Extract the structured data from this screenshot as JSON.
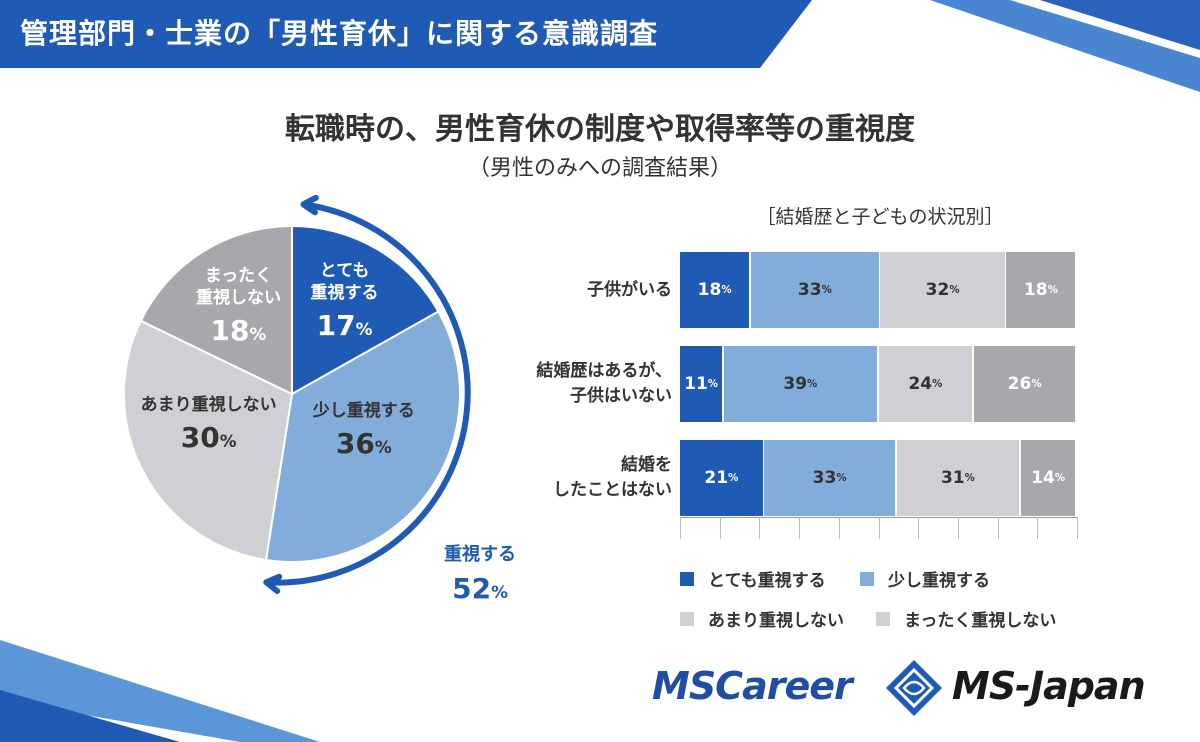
{
  "header": {
    "title": "管理部門・士業の「男性育休」に関する意識調査"
  },
  "title": "転職時の、男性育休の制度や取得率等の重視度",
  "subtitle": "（男性のみへの調査結果）",
  "colors": {
    "very": "#1f5bb4",
    "somewhat": "#82acd9",
    "not_much": "#cfd0d3",
    "not_at_all": "#a7a8ab",
    "accent": "#1f5bb4"
  },
  "pie": {
    "slices": [
      {
        "line1": "とても",
        "line2": "重視する",
        "value": "17"
      },
      {
        "line1": "少し重視する",
        "line2": "",
        "value": "36"
      },
      {
        "line1": "あまり重視しない",
        "line2": "",
        "value": "30"
      },
      {
        "line1": "まったく",
        "line2": "重視しない",
        "value": "18"
      }
    ],
    "total_label": "重視する",
    "total_value": "52",
    "unit": "%"
  },
  "bars": {
    "heading": "［結婚歴と子どもの状況別］",
    "rows": [
      {
        "line1": "子供がいる",
        "line2": "",
        "values": [
          "18",
          "33",
          "32",
          "18"
        ]
      },
      {
        "line1": "結婚歴はあるが、",
        "line2": "子供はいない",
        "values": [
          "11",
          "39",
          "24",
          "26"
        ]
      },
      {
        "line1": "結婚を",
        "line2": "したことはない",
        "values": [
          "21",
          "33",
          "31",
          "14"
        ]
      }
    ]
  },
  "legend": [
    "とても重視する",
    "少し重視する",
    "あまり重視しない",
    "まったく重視しない"
  ],
  "logos": {
    "left": "MSCareer",
    "right": "MS-Japan"
  },
  "chart_data": [
    {
      "type": "pie",
      "title": "転職時の、男性育休の制度や取得率等の重視度",
      "categories": [
        "とても重視する",
        "少し重視する",
        "あまり重視しない",
        "まったく重視しない"
      ],
      "values": [
        17,
        36,
        30,
        18
      ]
    },
    {
      "type": "bar",
      "stacked": true,
      "orientation": "horizontal",
      "title": "［結婚歴と子どもの状況別］",
      "categories": [
        "子供がいる",
        "結婚歴はあるが、子供はいない",
        "結婚をしたことはない"
      ],
      "series": [
        {
          "name": "とても重視する",
          "values": [
            18,
            11,
            21
          ]
        },
        {
          "name": "少し重視する",
          "values": [
            33,
            39,
            33
          ]
        },
        {
          "name": "あまり重視しない",
          "values": [
            32,
            24,
            31
          ]
        },
        {
          "name": "まったく重視しない",
          "values": [
            18,
            26,
            14
          ]
        }
      ],
      "legend": "bottom",
      "grid": false
    }
  ]
}
